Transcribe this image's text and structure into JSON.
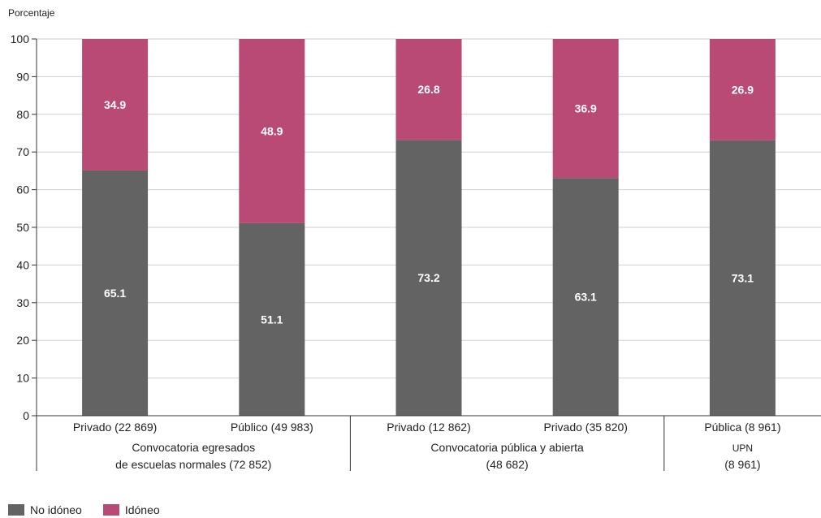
{
  "chart_data": {
    "type": "bar",
    "stacked": true,
    "ylabel": "Porcentaje",
    "ylim": [
      0,
      100
    ],
    "yticks": [
      0,
      10,
      20,
      30,
      40,
      50,
      60,
      70,
      80,
      90,
      100
    ],
    "grid": true,
    "categories": [
      "Privado (22 869)",
      "Público (49 983)",
      "Privado (12 862)",
      "Privado (35 820)",
      "Pública (8 961)"
    ],
    "groups": [
      {
        "lines": [
          "Convocatoria egresados",
          "de escuelas normales (72 852)"
        ],
        "span": [
          0,
          1
        ]
      },
      {
        "lines": [
          "Convocatoria pública y abierta",
          "(48 682)"
        ],
        "span": [
          2,
          3
        ]
      },
      {
        "lines": [
          "UPN",
          "(8 961)"
        ],
        "span": [
          4,
          4
        ]
      }
    ],
    "series": [
      {
        "name": "No idóneo",
        "color": "#636363",
        "values": [
          65.1,
          51.1,
          73.2,
          63.1,
          73.1
        ]
      },
      {
        "name": "Idóneo",
        "color": "#b84a75",
        "values": [
          34.9,
          48.9,
          26.8,
          36.9,
          26.9
        ]
      }
    ],
    "legend_position": "bottom-left"
  }
}
